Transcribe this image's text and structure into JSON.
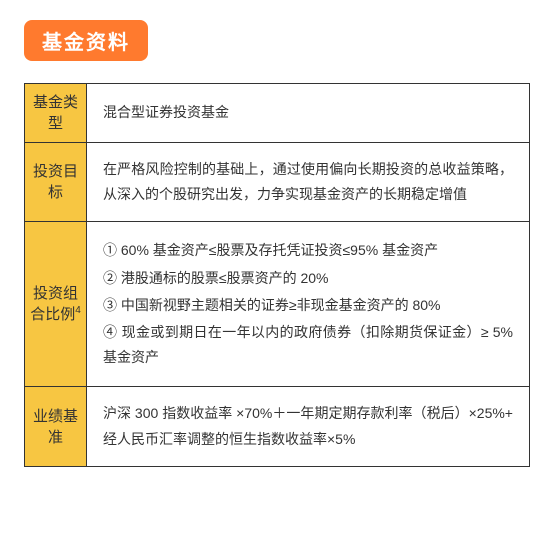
{
  "title": {
    "text": "基金资料",
    "bg_color": "#ff7a2e",
    "text_color": "#ffffff",
    "fontsize": 20
  },
  "table": {
    "label_bg_color": "#f7c642",
    "content_bg_color": "#ffffff",
    "border_color": "#333333",
    "label_fontsize": 15,
    "content_fontsize": 14,
    "rows": [
      {
        "label": "基金类型",
        "content": "混合型证券投资基金"
      },
      {
        "label": "投资目标",
        "content": "在严格风险控制的基础上，通过使用偏向长期投资的总收益策略，从深入的个股研究出发，力争实现基金资产的长期稳定增值"
      },
      {
        "label": "投资组合比例",
        "label_sup": "4",
        "items": [
          "① 60% 基金资产≤股票及存托凭证投资≤95% 基金资产",
          "② 港股通标的股票≤股票资产的 20%",
          "③ 中国新视野主题相关的证券≥非现金基金资产的 80%",
          "④ 现金或到期日在一年以内的政府债券（扣除期货保证金）≥ 5% 基金资产"
        ]
      },
      {
        "label": "业绩基准",
        "content": "沪深 300 指数收益率 ×70%＋一年期定期存款利率（税后）×25%+ 经人民币汇率调整的恒生指数收益率×5%"
      }
    ]
  }
}
